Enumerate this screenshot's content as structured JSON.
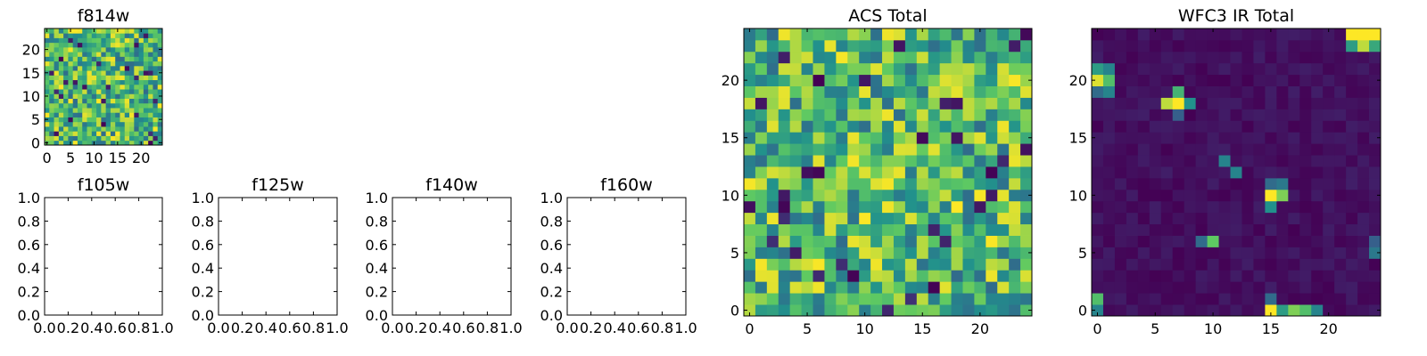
{
  "figure": {
    "palette": [
      "#440154",
      "#3b528b",
      "#21918c",
      "#5ec962",
      "#fde725"
    ]
  },
  "chart_data": [
    {
      "type": "heatmap",
      "id": "f814w",
      "title": "f814w",
      "grid_size": 25,
      "seed": 81,
      "colormap": "viridis",
      "background": "bright",
      "xlim": [
        -0.5,
        24.5
      ],
      "ylim": [
        -0.5,
        24.5
      ],
      "xticks": [
        0,
        5,
        10,
        15,
        20
      ],
      "yticks": [
        0,
        5,
        10,
        15,
        20
      ],
      "hot_pixels": []
    },
    {
      "type": "scatter",
      "id": "f105w",
      "title": "f105w",
      "empty": true,
      "xlim": [
        0,
        1
      ],
      "ylim": [
        0,
        1
      ],
      "xticks": [
        0.0,
        0.2,
        0.4,
        0.6,
        0.8,
        1.0
      ],
      "yticks": [
        0.0,
        0.2,
        0.4,
        0.6,
        0.8,
        1.0
      ]
    },
    {
      "type": "scatter",
      "id": "f125w",
      "title": "f125w",
      "empty": true,
      "xlim": [
        0,
        1
      ],
      "ylim": [
        0,
        1
      ],
      "xticks": [
        0.0,
        0.2,
        0.4,
        0.6,
        0.8,
        1.0
      ],
      "yticks": [
        0.0,
        0.2,
        0.4,
        0.6,
        0.8,
        1.0
      ]
    },
    {
      "type": "scatter",
      "id": "f140w",
      "title": "f140w",
      "empty": true,
      "xlim": [
        0,
        1
      ],
      "ylim": [
        0,
        1
      ],
      "xticks": [
        0.0,
        0.2,
        0.4,
        0.6,
        0.8,
        1.0
      ],
      "yticks": [
        0.0,
        0.2,
        0.4,
        0.6,
        0.8,
        1.0
      ]
    },
    {
      "type": "scatter",
      "id": "f160w",
      "title": "f160w",
      "empty": true,
      "xlim": [
        0,
        1
      ],
      "ylim": [
        0,
        1
      ],
      "xticks": [
        0.0,
        0.2,
        0.4,
        0.6,
        0.8,
        1.0
      ],
      "yticks": [
        0.0,
        0.2,
        0.4,
        0.6,
        0.8,
        1.0
      ]
    },
    {
      "type": "heatmap",
      "id": "acs-total",
      "title": "ACS Total",
      "grid_size": 25,
      "seed": 17,
      "colormap": "viridis",
      "background": "bright",
      "xlim": [
        -0.5,
        24.5
      ],
      "ylim": [
        -0.5,
        24.5
      ],
      "xticks": [
        0,
        5,
        10,
        15,
        20
      ],
      "yticks": [
        0,
        5,
        10,
        15,
        20
      ],
      "hot_pixels": []
    },
    {
      "type": "heatmap",
      "id": "wfc3-ir-total",
      "title": "WFC3 IR Total",
      "grid_size": 25,
      "seed": 33,
      "colormap": "viridis",
      "background": "dark",
      "xlim": [
        -0.5,
        24.5
      ],
      "ylim": [
        -0.5,
        24.5
      ],
      "xticks": [
        0,
        5,
        10,
        15,
        20
      ],
      "yticks": [
        0,
        5,
        10,
        15,
        20
      ],
      "hot_pixels": [
        {
          "x": 22,
          "y": 24,
          "v": 1.0
        },
        {
          "x": 23,
          "y": 24,
          "v": 1.0
        },
        {
          "x": 24,
          "y": 24,
          "v": 1.0
        },
        {
          "x": 22,
          "y": 23,
          "v": 0.55
        },
        {
          "x": 23,
          "y": 23,
          "v": 0.9
        },
        {
          "x": 24,
          "y": 23,
          "v": 0.6
        },
        {
          "x": 0,
          "y": 21,
          "v": 0.55
        },
        {
          "x": 0,
          "y": 20,
          "v": 0.95
        },
        {
          "x": 1,
          "y": 20,
          "v": 0.7
        },
        {
          "x": 1,
          "y": 21,
          "v": 0.45
        },
        {
          "x": 0,
          "y": 19,
          "v": 0.35
        },
        {
          "x": 1,
          "y": 19,
          "v": 0.45
        },
        {
          "x": 7,
          "y": 19,
          "v": 0.65
        },
        {
          "x": 6,
          "y": 18,
          "v": 0.9
        },
        {
          "x": 7,
          "y": 18,
          "v": 1.0
        },
        {
          "x": 8,
          "y": 18,
          "v": 0.5
        },
        {
          "x": 7,
          "y": 17,
          "v": 0.3
        },
        {
          "x": 11,
          "y": 13,
          "v": 0.45
        },
        {
          "x": 12,
          "y": 12,
          "v": 0.45
        },
        {
          "x": 15,
          "y": 11,
          "v": 0.35
        },
        {
          "x": 16,
          "y": 11,
          "v": 0.4
        },
        {
          "x": 15,
          "y": 10,
          "v": 1.0
        },
        {
          "x": 16,
          "y": 10,
          "v": 0.8
        },
        {
          "x": 15,
          "y": 9,
          "v": 0.5
        },
        {
          "x": 10,
          "y": 6,
          "v": 0.75
        },
        {
          "x": 9,
          "y": 6,
          "v": 0.35
        },
        {
          "x": 24,
          "y": 5,
          "v": 0.4
        },
        {
          "x": 24,
          "y": 6,
          "v": 0.3
        },
        {
          "x": 0,
          "y": 1,
          "v": 0.7
        },
        {
          "x": 0,
          "y": 0,
          "v": 0.45
        },
        {
          "x": 15,
          "y": 0,
          "v": 1.0
        },
        {
          "x": 16,
          "y": 0,
          "v": 0.55
        },
        {
          "x": 17,
          "y": 0,
          "v": 0.8
        },
        {
          "x": 18,
          "y": 0,
          "v": 0.7
        },
        {
          "x": 19,
          "y": 0,
          "v": 0.45
        },
        {
          "x": 15,
          "y": 1,
          "v": 0.35
        }
      ]
    }
  ]
}
